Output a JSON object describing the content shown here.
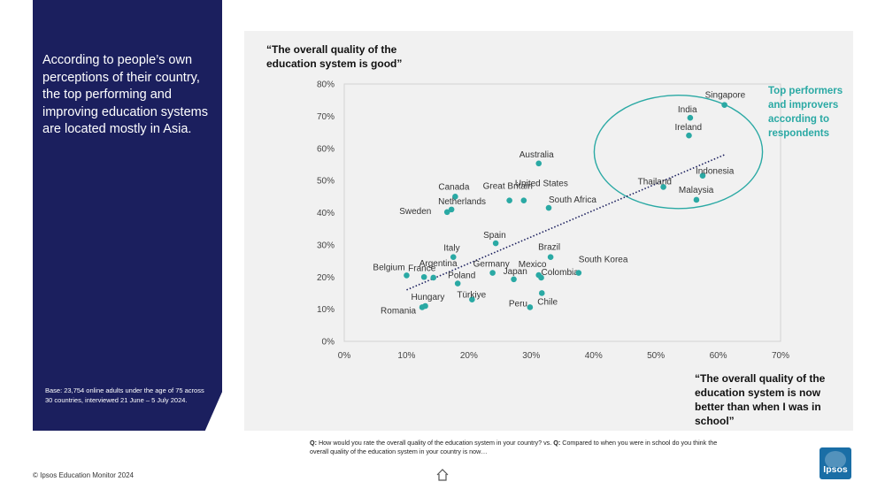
{
  "sidebar": {
    "summary": "According to people’s own perceptions of their country, the top performing and improving education systems are located mostly in Asia.",
    "base_note": "Base: 23,754 online adults under the age of 75 across 30 countries, interviewed 21 June – 5 July 2024."
  },
  "labels": {
    "y_question": "“The overall quality of the education system is good”",
    "x_question": "“The overall quality of the education system is now better than when I was in school”",
    "top_performers": "Top performers and improvers according to respondents"
  },
  "footnote": {
    "q1_prefix": "Q:",
    "q1_text": " How would you rate the overall quality of the education system in your country?  vs.  ",
    "q2_prefix": "Q:",
    "q2_text": " Compared to when you were in school do you think the overall quality of the education system in your country is now…"
  },
  "copyright": "© Ipsos Education Monitor 2024",
  "logo_text": "Ipsos",
  "colors": {
    "navy": "#1b1f5e",
    "teal": "#2aa9a4",
    "trend": "#1b1f5e",
    "panel": "#f1f1f1"
  },
  "chart_data": {
    "type": "scatter",
    "title": "",
    "xlabel": "“The overall quality of the education system is now better than when I was in school”",
    "ylabel": "“The overall quality of the education system is good”",
    "xlim": [
      0,
      70
    ],
    "ylim": [
      0,
      80
    ],
    "x_ticks": [
      0,
      10,
      20,
      30,
      40,
      50,
      60,
      70
    ],
    "y_ticks": [
      0,
      10,
      20,
      30,
      40,
      50,
      60,
      70,
      80
    ],
    "x_tick_labels": [
      "0%",
      "10%",
      "20%",
      "30%",
      "40%",
      "50%",
      "60%",
      "70%"
    ],
    "y_tick_labels": [
      "0%",
      "10%",
      "20%",
      "30%",
      "40%",
      "50%",
      "60%",
      "70%",
      "80%"
    ],
    "trendline": {
      "x": [
        10,
        61
      ],
      "y": [
        16,
        58
      ]
    },
    "highlight_ellipse": {
      "cx": 53.6,
      "cy": 58.9,
      "rx": 13.5,
      "ry": 17.6,
      "label": "Top performers and improvers according to respondents"
    },
    "points": [
      {
        "country": "Singapore",
        "x": 61,
        "y": 73.5
      },
      {
        "country": "India",
        "x": 55.5,
        "y": 69.5
      },
      {
        "country": "Ireland",
        "x": 55.3,
        "y": 64
      },
      {
        "country": "Indonesia",
        "x": 57.5,
        "y": 51.5
      },
      {
        "country": "Thailand",
        "x": 51.2,
        "y": 48
      },
      {
        "country": "Malaysia",
        "x": 56.5,
        "y": 44
      },
      {
        "country": "Australia",
        "x": 31.2,
        "y": 55.3
      },
      {
        "country": "Great Britain",
        "x": 26.5,
        "y": 43.8
      },
      {
        "country": "United States",
        "x": 28.8,
        "y": 43.8
      },
      {
        "country": "South Africa",
        "x": 32.8,
        "y": 41.5
      },
      {
        "country": "Canada",
        "x": 17.8,
        "y": 45
      },
      {
        "country": "Netherlands",
        "x": 17.2,
        "y": 41
      },
      {
        "country": "Sweden",
        "x": 16.5,
        "y": 40.2
      },
      {
        "country": "Spain",
        "x": 24.3,
        "y": 30.5
      },
      {
        "country": "Italy",
        "x": 17.5,
        "y": 26.2
      },
      {
        "country": "Brazil",
        "x": 33.1,
        "y": 26.2
      },
      {
        "country": "France",
        "x": 12.8,
        "y": 20
      },
      {
        "country": "Argentina",
        "x": 14.3,
        "y": 19.8
      },
      {
        "country": "Belgium",
        "x": 10,
        "y": 20.5
      },
      {
        "country": "Germany",
        "x": 23.8,
        "y": 21.3
      },
      {
        "country": "Japan",
        "x": 27.2,
        "y": 19.3
      },
      {
        "country": "Mexico",
        "x": 31.2,
        "y": 20.6
      },
      {
        "country": "Colombia",
        "x": 31.6,
        "y": 19.8
      },
      {
        "country": "South Korea",
        "x": 37.6,
        "y": 21.3
      },
      {
        "country": "Poland",
        "x": 18.2,
        "y": 18
      },
      {
        "country": "Chile",
        "x": 31.7,
        "y": 15
      },
      {
        "country": "Türkiye",
        "x": 20.5,
        "y": 13
      },
      {
        "country": "Peru",
        "x": 29.8,
        "y": 10.6
      },
      {
        "country": "Hungary",
        "x": 13,
        "y": 11
      },
      {
        "country": "Romania",
        "x": 12.5,
        "y": 10.6
      }
    ]
  }
}
